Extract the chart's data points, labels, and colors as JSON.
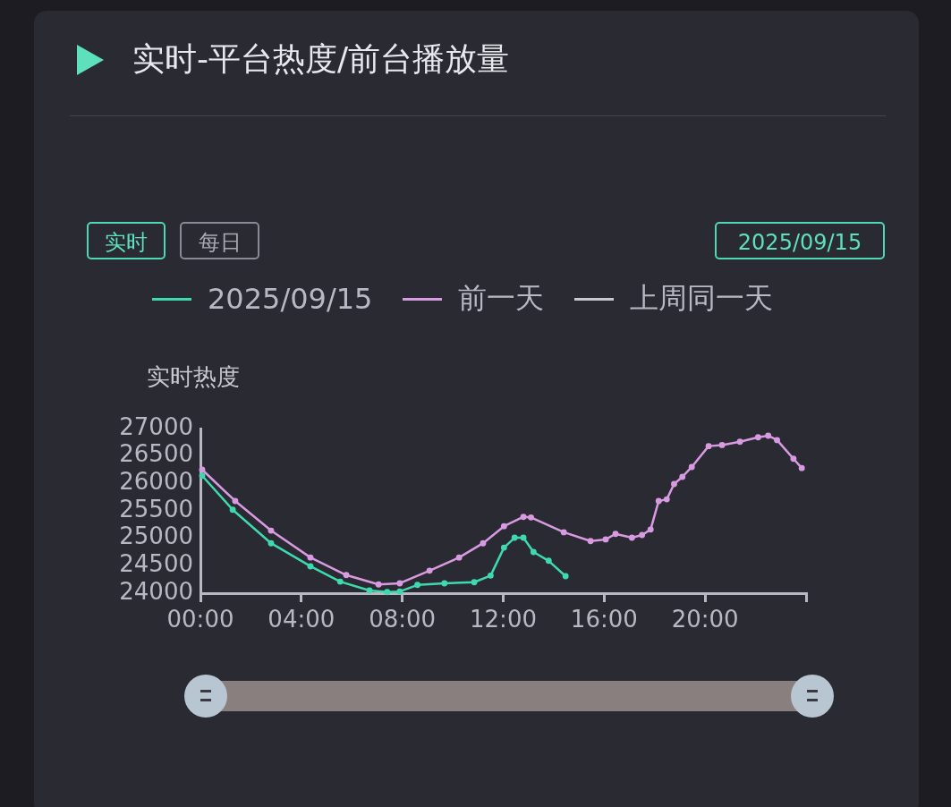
{
  "chart_data": {
    "type": "line",
    "title": "实时-平台热度/前台播放量",
    "ylabel": "实时热度",
    "annotations": [
      "实时",
      "每日",
      "2025/09/15"
    ],
    "xlim": [
      0,
      24
    ],
    "xticks": [
      {
        "value": 0,
        "label": "00:00"
      },
      {
        "value": 4,
        "label": "04:00"
      },
      {
        "value": 8,
        "label": "08:00"
      },
      {
        "value": 12,
        "label": "12:00"
      },
      {
        "value": 16,
        "label": "16:00"
      },
      {
        "value": 20,
        "label": "20:00"
      },
      {
        "value": 24,
        "label": null
      }
    ],
    "ylim": [
      24000,
      27000
    ],
    "yticks": [
      24000,
      24500,
      25000,
      25500,
      26000,
      26500,
      27000
    ],
    "legend": "top",
    "marker": "circle",
    "line_style": "solid",
    "series": [
      {
        "name": "2025/09/15",
        "color": "#3fd9b0",
        "x": [
          0.07,
          1.28,
          2.8,
          4.36,
          5.54,
          6.7,
          7.4,
          7.9,
          8.6,
          9.67,
          10.85,
          11.5,
          12.03,
          12.45,
          12.8,
          13.2,
          13.8,
          14.47
        ],
        "values": [
          26140,
          25520,
          24910,
          24490,
          24210,
          24050,
          24020,
          24030,
          24150,
          24180,
          24200,
          24320,
          24830,
          25010,
          25010,
          24750,
          24590,
          24310
        ]
      },
      {
        "name": "前一天",
        "color": "#d89ae0",
        "x": [
          0.07,
          1.38,
          2.8,
          4.36,
          5.78,
          7.06,
          7.9,
          9.08,
          10.25,
          11.2,
          12.03,
          12.8,
          13.1,
          14.4,
          15.46,
          16.06,
          16.45,
          17.1,
          17.5,
          17.84,
          18.16,
          18.48,
          18.77,
          19.1,
          19.47,
          20.14,
          20.67,
          21.38,
          22.1,
          22.5,
          22.85,
          23.5,
          23.83
        ],
        "values": [
          26250,
          25680,
          25140,
          24650,
          24330,
          24160,
          24180,
          24410,
          24650,
          24910,
          25220,
          25390,
          25380,
          25110,
          24950,
          24980,
          25080,
          25010,
          25060,
          25160,
          25680,
          25710,
          25990,
          26120,
          26300,
          26680,
          26700,
          26760,
          26840,
          26870,
          26790,
          26450,
          26280
        ]
      },
      {
        "name": "上周同一天",
        "color": "#c8c8d0"
      }
    ]
  }
}
